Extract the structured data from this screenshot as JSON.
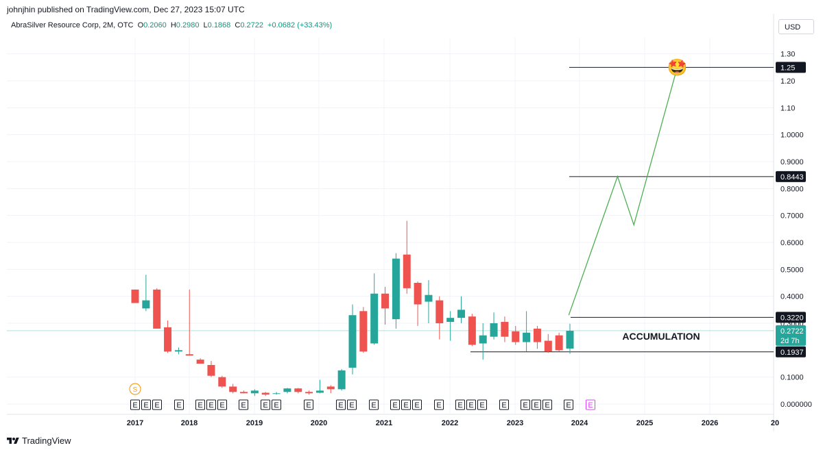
{
  "header": {
    "publisher_line": "johnjhin published on TradingView.com, Dec 27, 2023 15:07 UTC"
  },
  "legend": {
    "symbol": "AbraSilver Resource Corp, 2M, OTC",
    "o_label": "O",
    "o_value": "0.2060",
    "h_label": "H",
    "h_value": "0.2980",
    "l_label": "L",
    "l_value": "0.1868",
    "c_label": "C",
    "c_value": "0.2722",
    "change": "+0.0682 (+33.43%)"
  },
  "currency_button": "USD",
  "footer": {
    "brand": "TradingView"
  },
  "chart_data": {
    "type": "candlestick",
    "timeframe": "2M",
    "colors": {
      "up": "#26a69a",
      "down": "#ef5350",
      "projection": "#4caf50",
      "level_line": "#131722",
      "current_price": "#26a69a"
    },
    "y_axis": {
      "min": 0.0,
      "max": 1.35,
      "ticks": [
        "1.30",
        "1.20",
        "1.10",
        "1.0000",
        "0.9000",
        "0.8000",
        "0.7000",
        "0.6000",
        "0.5000",
        "0.4000",
        "0.3000",
        "0.1000",
        "0.000000"
      ],
      "tick_values": [
        1.3,
        1.2,
        1.1,
        1.0,
        0.9,
        0.8,
        0.7,
        0.6,
        0.5,
        0.4,
        0.3,
        0.1,
        0.0
      ]
    },
    "x_axis": {
      "labels": [
        "2017",
        "2018",
        "2019",
        "2020",
        "2021",
        "2022",
        "2023",
        "2024",
        "2025",
        "2026",
        "20"
      ]
    },
    "candles": [
      {
        "o": 0.425,
        "h": 0.425,
        "l": 0.375,
        "c": 0.375
      },
      {
        "o": 0.355,
        "h": 0.48,
        "l": 0.345,
        "c": 0.385
      },
      {
        "o": 0.425,
        "h": 0.43,
        "l": 0.28,
        "c": 0.28
      },
      {
        "o": 0.285,
        "h": 0.31,
        "l": 0.19,
        "c": 0.195
      },
      {
        "o": 0.195,
        "h": 0.21,
        "l": 0.185,
        "c": 0.2
      },
      {
        "o": 0.185,
        "h": 0.425,
        "l": 0.18,
        "c": 0.18
      },
      {
        "o": 0.165,
        "h": 0.17,
        "l": 0.15,
        "c": 0.15
      },
      {
        "o": 0.145,
        "h": 0.16,
        "l": 0.1,
        "c": 0.105
      },
      {
        "o": 0.1,
        "h": 0.105,
        "l": 0.06,
        "c": 0.065
      },
      {
        "o": 0.065,
        "h": 0.075,
        "l": 0.04,
        "c": 0.045
      },
      {
        "o": 0.045,
        "h": 0.05,
        "l": 0.04,
        "c": 0.04
      },
      {
        "o": 0.04,
        "h": 0.055,
        "l": 0.03,
        "c": 0.05
      },
      {
        "o": 0.042,
        "h": 0.045,
        "l": 0.03,
        "c": 0.035
      },
      {
        "o": 0.038,
        "h": 0.045,
        "l": 0.035,
        "c": 0.04
      },
      {
        "o": 0.045,
        "h": 0.06,
        "l": 0.04,
        "c": 0.058
      },
      {
        "o": 0.058,
        "h": 0.06,
        "l": 0.04,
        "c": 0.045
      },
      {
        "o": 0.045,
        "h": 0.05,
        "l": 0.035,
        "c": 0.04
      },
      {
        "o": 0.042,
        "h": 0.09,
        "l": 0.04,
        "c": 0.05
      },
      {
        "o": 0.065,
        "h": 0.07,
        "l": 0.04,
        "c": 0.055
      },
      {
        "o": 0.055,
        "h": 0.13,
        "l": 0.05,
        "c": 0.125
      },
      {
        "o": 0.135,
        "h": 0.37,
        "l": 0.11,
        "c": 0.33
      },
      {
        "o": 0.345,
        "h": 0.36,
        "l": 0.19,
        "c": 0.195
      },
      {
        "o": 0.225,
        "h": 0.485,
        "l": 0.22,
        "c": 0.41
      },
      {
        "o": 0.41,
        "h": 0.435,
        "l": 0.295,
        "c": 0.355
      },
      {
        "o": 0.315,
        "h": 0.56,
        "l": 0.28,
        "c": 0.54
      },
      {
        "o": 0.555,
        "h": 0.68,
        "l": 0.41,
        "c": 0.43
      },
      {
        "o": 0.45,
        "h": 0.455,
        "l": 0.29,
        "c": 0.37
      },
      {
        "o": 0.38,
        "h": 0.46,
        "l": 0.3,
        "c": 0.405
      },
      {
        "o": 0.385,
        "h": 0.4,
        "l": 0.24,
        "c": 0.3
      },
      {
        "o": 0.305,
        "h": 0.345,
        "l": 0.235,
        "c": 0.32
      },
      {
        "o": 0.32,
        "h": 0.4,
        "l": 0.3,
        "c": 0.35
      },
      {
        "o": 0.325,
        "h": 0.335,
        "l": 0.215,
        "c": 0.22
      },
      {
        "o": 0.225,
        "h": 0.3,
        "l": 0.165,
        "c": 0.255
      },
      {
        "o": 0.25,
        "h": 0.34,
        "l": 0.24,
        "c": 0.3
      },
      {
        "o": 0.305,
        "h": 0.325,
        "l": 0.23,
        "c": 0.25
      },
      {
        "o": 0.27,
        "h": 0.29,
        "l": 0.22,
        "c": 0.23
      },
      {
        "o": 0.23,
        "h": 0.345,
        "l": 0.195,
        "c": 0.265
      },
      {
        "o": 0.28,
        "h": 0.29,
        "l": 0.205,
        "c": 0.23
      },
      {
        "o": 0.235,
        "h": 0.26,
        "l": 0.19,
        "c": 0.195
      },
      {
        "o": 0.255,
        "h": 0.265,
        "l": 0.195,
        "c": 0.2
      },
      {
        "o": 0.206,
        "h": 0.298,
        "l": 0.187,
        "c": 0.272
      }
    ],
    "levels": [
      {
        "value": 1.25,
        "label": "1.25"
      },
      {
        "value": 0.8443,
        "label": "0.8443"
      },
      {
        "value": 0.322,
        "label": "0.3220"
      },
      {
        "value": 0.1937,
        "label": "0.1937"
      }
    ],
    "current_price": {
      "value": 0.2722,
      "label": "0.2722",
      "countdown": "2d 7h"
    },
    "annotation": {
      "text": "ACCUMULATION"
    },
    "projection_path": [
      {
        "date": "2023-11",
        "y": 0.33
      },
      {
        "date": "2024-08",
        "y": 0.845
      },
      {
        "date": "2024-11",
        "y": 0.665
      },
      {
        "date": "2025-07",
        "y": 1.25
      }
    ],
    "projection_emoji": "🤩",
    "events": {
      "dividend_marker": "S",
      "earnings_marker": "E",
      "earnings_count": 30
    }
  }
}
